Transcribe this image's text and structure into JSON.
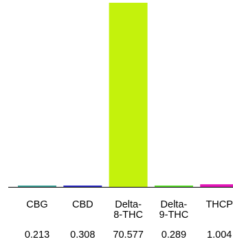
{
  "chart_data": {
    "type": "bar",
    "categories": [
      "CBG",
      "CBD",
      "Delta-8-THC",
      "Delta-9-THC",
      "THCP"
    ],
    "category_label_lines": [
      [
        "CBG"
      ],
      [
        "CBD"
      ],
      [
        "Delta-",
        "8-THC"
      ],
      [
        "Delta-",
        "9-THC"
      ],
      [
        "THCP"
      ]
    ],
    "values": [
      0.213,
      0.308,
      70.577,
      0.289,
      1.004
    ],
    "value_labels": [
      "0.213",
      "0.308",
      "70.577",
      "0.289",
      "1.004"
    ],
    "colors": [
      "#3fa39a",
      "#2f2fc6",
      "#c4f20c",
      "#59df2b",
      "#e316b8"
    ],
    "title": "",
    "xlabel": "",
    "ylabel": "",
    "ylim": [
      0,
      70.577
    ],
    "grid": false,
    "legend": "none"
  }
}
